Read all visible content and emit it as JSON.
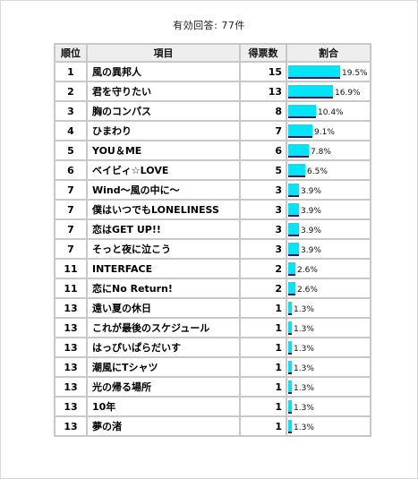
{
  "summary": "有効回答: 77件",
  "headers": {
    "rank": "順位",
    "item": "項目",
    "votes": "得票数",
    "percent": "割合"
  },
  "bar_color": "#00e5f5",
  "bar_underline_color": "#002a7a",
  "rows": [
    {
      "rank": "1",
      "item": "風の異邦人",
      "votes": "15",
      "percent": "19.5%",
      "fraction": 0.195
    },
    {
      "rank": "2",
      "item": "君を守りたい",
      "votes": "13",
      "percent": "16.9%",
      "fraction": 0.169
    },
    {
      "rank": "3",
      "item": "胸のコンパス",
      "votes": "8",
      "percent": "10.4%",
      "fraction": 0.104
    },
    {
      "rank": "4",
      "item": "ひまわり",
      "votes": "7",
      "percent": "9.1%",
      "fraction": 0.091
    },
    {
      "rank": "5",
      "item": "YOU＆ME",
      "votes": "6",
      "percent": "7.8%",
      "fraction": 0.078
    },
    {
      "rank": "6",
      "item": "ベイビィ☆LOVE",
      "votes": "5",
      "percent": "6.5%",
      "fraction": 0.065
    },
    {
      "rank": "7",
      "item": "Wind～風の中に～",
      "votes": "3",
      "percent": "3.9%",
      "fraction": 0.039
    },
    {
      "rank": "7",
      "item": "僕はいつでもLONELINESS",
      "votes": "3",
      "percent": "3.9%",
      "fraction": 0.039
    },
    {
      "rank": "7",
      "item": "恋はGET UP!!",
      "votes": "3",
      "percent": "3.9%",
      "fraction": 0.039
    },
    {
      "rank": "7",
      "item": "そっと夜に泣こう",
      "votes": "3",
      "percent": "3.9%",
      "fraction": 0.039
    },
    {
      "rank": "11",
      "item": "INTERFACE",
      "votes": "2",
      "percent": "2.6%",
      "fraction": 0.026
    },
    {
      "rank": "11",
      "item": "恋にNo Return!",
      "votes": "2",
      "percent": "2.6%",
      "fraction": 0.026
    },
    {
      "rank": "13",
      "item": "遠い夏の休日",
      "votes": "1",
      "percent": "1.3%",
      "fraction": 0.013
    },
    {
      "rank": "13",
      "item": "これが最後のスケジュール",
      "votes": "1",
      "percent": "1.3%",
      "fraction": 0.013
    },
    {
      "rank": "13",
      "item": "はっぴいぱらだいす",
      "votes": "1",
      "percent": "1.3%",
      "fraction": 0.013
    },
    {
      "rank": "13",
      "item": "潮風にTシャツ",
      "votes": "1",
      "percent": "1.3%",
      "fraction": 0.013
    },
    {
      "rank": "13",
      "item": "光の帰る場所",
      "votes": "1",
      "percent": "1.3%",
      "fraction": 0.013
    },
    {
      "rank": "13",
      "item": "10年",
      "votes": "1",
      "percent": "1.3%",
      "fraction": 0.013
    },
    {
      "rank": "13",
      "item": "夢の渚",
      "votes": "1",
      "percent": "1.3%",
      "fraction": 0.013
    }
  ]
}
